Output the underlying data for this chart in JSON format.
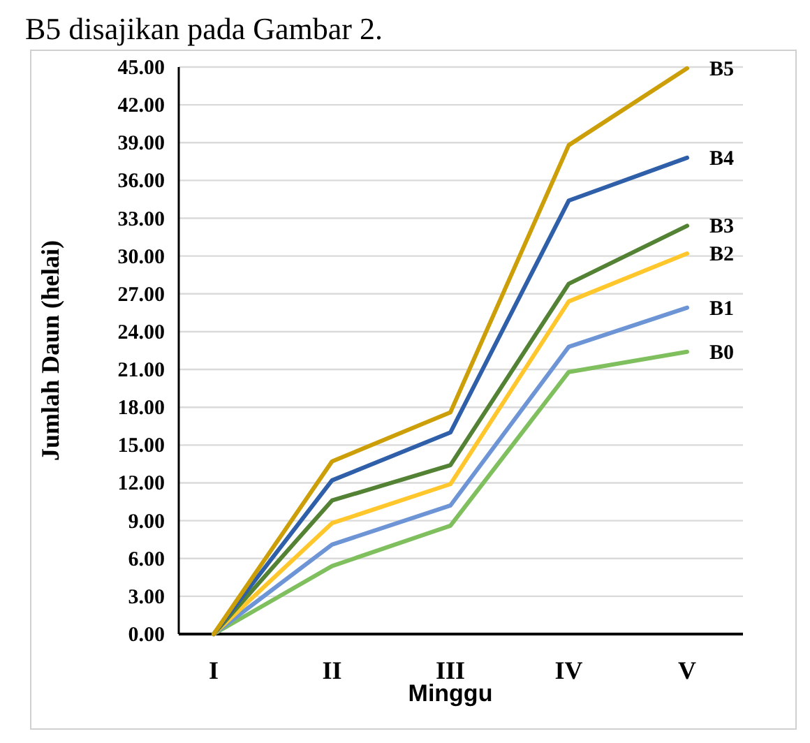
{
  "chart_data": {
    "type": "line",
    "xlabel": "Minggu",
    "ylabel": "Jumlah Daun (helai)",
    "annotations": [
      "B5 disajikan pada Gambar 2."
    ],
    "categories": [
      "I",
      "II",
      "III",
      "IV",
      "V"
    ],
    "ylim": [
      0,
      45
    ],
    "yticks": [
      {
        "value": 0,
        "label": "0.00"
      },
      {
        "value": 3,
        "label": "3.00"
      },
      {
        "value": 6,
        "label": "6.00"
      },
      {
        "value": 9,
        "label": "9.00"
      },
      {
        "value": 12,
        "label": "12.00"
      },
      {
        "value": 15,
        "label": "15.00"
      },
      {
        "value": 18,
        "label": "18.00"
      },
      {
        "value": 21,
        "label": "21.00"
      },
      {
        "value": 24,
        "label": "24.00"
      },
      {
        "value": 27,
        "label": "27.00"
      },
      {
        "value": 30,
        "label": "30.00"
      },
      {
        "value": 33,
        "label": "33.00"
      },
      {
        "value": 36,
        "label": "36.00"
      },
      {
        "value": 39,
        "label": "39.00"
      },
      {
        "value": 42,
        "label": "42.00"
      },
      {
        "value": 45,
        "label": "45.00"
      }
    ],
    "grid": "y",
    "legend": false,
    "marker": "none",
    "line_style": "solid",
    "series": [
      {
        "name": "B0",
        "color": "#7fbf5e",
        "values": [
          0,
          5.4,
          8.6,
          20.8,
          22.4
        ]
      },
      {
        "name": "B1",
        "color": "#6d95d6",
        "values": [
          0,
          7.1,
          10.2,
          22.8,
          25.9
        ]
      },
      {
        "name": "B2",
        "color": "#ffc72c",
        "values": [
          0,
          8.8,
          11.9,
          26.4,
          30.2
        ]
      },
      {
        "name": "B3",
        "color": "#548235",
        "values": [
          0,
          10.6,
          13.4,
          27.8,
          32.4
        ]
      },
      {
        "name": "B4",
        "color": "#2e5fa8",
        "values": [
          0,
          12.2,
          16.0,
          34.4,
          37.8
        ]
      },
      {
        "name": "B5",
        "color": "#cc9f08",
        "values": [
          0,
          13.7,
          17.6,
          38.8,
          44.9
        ]
      }
    ]
  }
}
